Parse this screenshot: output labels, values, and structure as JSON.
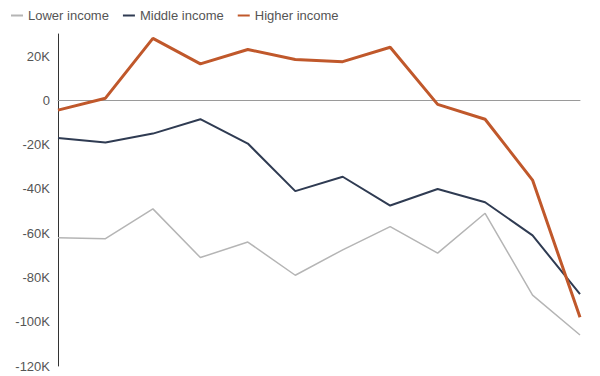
{
  "chart_data": {
    "type": "line",
    "categories": [
      null,
      null,
      null,
      null,
      null,
      null,
      null,
      null,
      null,
      null,
      null,
      null
    ],
    "series": [
      {
        "name": "Lower income",
        "color": "#b5b5b5",
        "values": [
          -62000,
          -62500,
          -49000,
          -71000,
          -64000,
          -79000,
          -67500,
          -57000,
          -69000,
          -51000,
          -88000,
          -106000
        ]
      },
      {
        "name": "Middle income",
        "color": "#2f3b52",
        "values": [
          -17000,
          -19000,
          -15000,
          -8500,
          -19500,
          -41000,
          -34500,
          -47500,
          -40000,
          -46000,
          -61000,
          -87500
        ]
      },
      {
        "name": "Higher income",
        "color": "#c0582b",
        "values": [
          -4400,
          1000,
          28000,
          16500,
          23000,
          18500,
          17500,
          24000,
          -1800,
          -8500,
          -36000,
          -98000
        ]
      }
    ],
    "ylim": [
      -120000,
      30000
    ],
    "yticks": [
      {
        "value": -120000,
        "label": "-120K"
      },
      {
        "value": -100000,
        "label": "-100K"
      },
      {
        "value": -80000,
        "label": "-80K"
      },
      {
        "value": -60000,
        "label": "-60K"
      },
      {
        "value": -40000,
        "label": "-40K"
      },
      {
        "value": -20000,
        "label": "-20K"
      },
      0,
      {
        "value": 20000,
        "label": "20K"
      }
    ],
    "grid": false,
    "legend": "top-left",
    "tick_labels": "y"
  }
}
